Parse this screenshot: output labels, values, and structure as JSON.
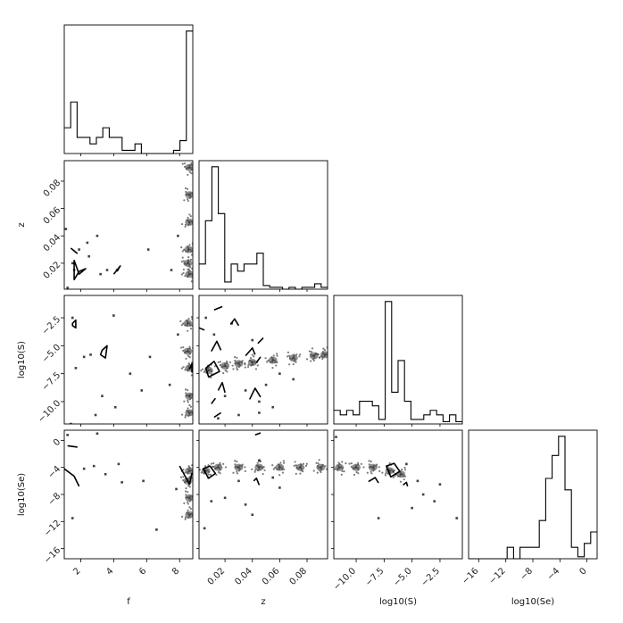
{
  "chart_data": {
    "type": "corner",
    "parameters": [
      "f",
      "z",
      "log10(S)",
      "log10(Se)"
    ],
    "ranges": [
      [
        1.0,
        8.8
      ],
      [
        0.001,
        0.095
      ],
      [
        -12.0,
        -0.5
      ],
      [
        -17.5,
        1.5
      ]
    ],
    "ticks": [
      {
        "values": [
          2,
          4,
          6,
          8
        ],
        "labels": [
          "2",
          "4",
          "6",
          "8"
        ]
      },
      {
        "values": [
          0.02,
          0.04,
          0.06,
          0.08
        ],
        "labels": [
          "0.02",
          "0.04",
          "0.06",
          "0.08"
        ]
      },
      {
        "values": [
          -10,
          -7.5,
          -5,
          -2.5
        ],
        "labels": [
          "−10.0",
          "−7.5",
          "−5.0",
          "−2.5"
        ]
      },
      {
        "values": [
          -16,
          -12,
          -8,
          -4,
          0
        ],
        "labels": [
          "−16",
          "−12",
          "−8",
          "−4",
          "0"
        ]
      }
    ],
    "yticks": [
      null,
      {
        "values": [
          0.02,
          0.04,
          0.06,
          0.08
        ],
        "labels": [
          "0.02",
          "0.04",
          "0.06",
          "0.08"
        ]
      },
      {
        "values": [
          -10,
          -7.5,
          -5,
          -2.5
        ],
        "labels": [
          "−10.0",
          "−7.5",
          "−5.0",
          "−2.5"
        ]
      },
      {
        "values": [
          -16,
          -12,
          -8,
          -4,
          0
        ],
        "labels": [
          "−16",
          "−12",
          "−8",
          "−4",
          "0"
        ]
      }
    ],
    "histograms": [
      {
        "param": "f",
        "bin_edges": [
          1.0,
          1.39,
          1.78,
          2.17,
          2.56,
          2.95,
          3.34,
          3.73,
          4.12,
          4.51,
          4.9,
          5.29,
          5.68,
          6.07,
          6.46,
          6.85,
          7.24,
          7.63,
          8.02,
          8.41,
          8.8
        ],
        "counts": [
          8,
          16,
          5,
          5,
          3,
          5,
          8,
          5,
          5,
          1,
          1,
          3,
          0,
          0,
          0,
          0,
          0,
          1,
          4,
          38
        ]
      },
      {
        "param": "z",
        "bin_edges": [
          0.001,
          0.0057,
          0.0104,
          0.0151,
          0.0198,
          0.0245,
          0.0292,
          0.0339,
          0.0386,
          0.0433,
          0.048,
          0.0527,
          0.0574,
          0.0621,
          0.0668,
          0.0715,
          0.0762,
          0.0809,
          0.0856,
          0.0903,
          0.095
        ],
        "counts": [
          7,
          19,
          34,
          21,
          2,
          7,
          5,
          7,
          7,
          10,
          1,
          0.5,
          0.5,
          0,
          0.5,
          0,
          0.5,
          0.5,
          1.5,
          0.5
        ]
      },
      {
        "param": "log10(S)",
        "bin_edges": [
          -12.0,
          -11.425,
          -10.85,
          -10.275,
          -9.7,
          -9.125,
          -8.55,
          -7.975,
          -7.4,
          -6.825,
          -6.25,
          -5.675,
          -5.1,
          -4.525,
          -3.95,
          -3.375,
          -2.8,
          -2.225,
          -1.65,
          -1.075,
          -0.5
        ],
        "counts": [
          3,
          2,
          3,
          2,
          5,
          5,
          4,
          1,
          27,
          7,
          14,
          5,
          1,
          1,
          2,
          3,
          2,
          0.5,
          2,
          0.5
        ]
      },
      {
        "param": "log10(Se)",
        "bin_edges": [
          -17.5,
          -16.55,
          -15.6,
          -14.65,
          -13.7,
          -12.75,
          -11.8,
          -10.85,
          -9.9,
          -8.95,
          -8.0,
          -7.05,
          -6.1,
          -5.15,
          -4.2,
          -3.25,
          -2.3,
          -1.35,
          -0.4,
          0.55,
          1.5
        ],
        "counts": [
          0,
          0,
          0,
          0,
          0,
          0,
          3,
          0,
          3,
          3,
          3,
          10,
          21,
          27,
          32,
          18,
          3,
          0.5,
          4,
          7
        ]
      }
    ],
    "pairs": [
      {
        "x": "f",
        "y": "z",
        "dense": [
          [
            8.6,
            0.012
          ],
          [
            8.6,
            0.09
          ],
          [
            8.6,
            0.07
          ],
          [
            8.6,
            0.05
          ],
          [
            8.55,
            0.03
          ],
          [
            8.5,
            0.02
          ]
        ],
        "sparse": [
          [
            1.6,
            0.015
          ],
          [
            1.5,
            0.02
          ],
          [
            1.1,
            0.045
          ],
          [
            1.9,
            0.03
          ],
          [
            2.5,
            0.025
          ],
          [
            3.2,
            0.012
          ],
          [
            3.6,
            0.015
          ],
          [
            4.2,
            0.015
          ],
          [
            2.4,
            0.035
          ],
          [
            3.0,
            0.04
          ],
          [
            6.1,
            0.03
          ],
          [
            7.5,
            0.015
          ],
          [
            7.9,
            0.04
          ],
          [
            1.2,
            0.002
          ]
        ],
        "contours": [
          [
            [
              1.6,
              0.022
            ],
            [
              1.9,
              0.012
            ],
            [
              2.3,
              0.016
            ],
            [
              1.9,
              0.014
            ],
            [
              1.6,
              0.008
            ]
          ],
          [
            [
              4.0,
              0.012
            ],
            [
              4.4,
              0.018
            ],
            [
              4.2,
              0.014
            ]
          ],
          [
            [
              1.4,
              0.031
            ],
            [
              1.8,
              0.027
            ]
          ]
        ]
      },
      {
        "x": "f",
        "y": "log10(S)",
        "dense": [
          [
            8.6,
            -7.0
          ],
          [
            8.5,
            -5.5
          ],
          [
            8.6,
            -9.5
          ],
          [
            8.6,
            -11.0
          ],
          [
            8.5,
            -3.0
          ]
        ],
        "sparse": [
          [
            1.5,
            -2.5
          ],
          [
            1.4,
            -12.0
          ],
          [
            1.7,
            -7.0
          ],
          [
            2.2,
            -6.0
          ],
          [
            2.6,
            -5.8
          ],
          [
            3.3,
            -9.5
          ],
          [
            4.1,
            -10.5
          ],
          [
            5.0,
            -7.5
          ],
          [
            5.7,
            -9.0
          ],
          [
            6.2,
            -6.0
          ],
          [
            7.4,
            -8.5
          ],
          [
            7.9,
            -4.0
          ],
          [
            2.9,
            -11.2
          ],
          [
            4.0,
            -2.3
          ]
        ],
        "contours": [
          [
            [
              1.5,
              -3.0
            ],
            [
              1.7,
              -2.7
            ],
            [
              1.7,
              -3.4
            ],
            [
              1.5,
              -3.2
            ]
          ],
          [
            [
              3.3,
              -5.4
            ],
            [
              3.6,
              -5.0
            ],
            [
              3.5,
              -6.1
            ],
            [
              3.2,
              -5.8
            ]
          ],
          [
            [
              8.6,
              -7.1
            ],
            [
              8.75,
              -6.6
            ],
            [
              8.75,
              -7.4
            ]
          ]
        ]
      },
      {
        "x": "f",
        "y": "log10(Se)",
        "dense": [
          [
            8.6,
            -4.5
          ],
          [
            8.5,
            -6.0
          ],
          [
            8.6,
            -8.5
          ],
          [
            8.6,
            -11.0
          ]
        ],
        "sparse": [
          [
            1.2,
            0.8
          ],
          [
            1.5,
            -11.5
          ],
          [
            2.2,
            -4.2
          ],
          [
            2.8,
            -3.8
          ],
          [
            3.5,
            -5.0
          ],
          [
            4.3,
            -3.5
          ],
          [
            5.8,
            -6.0
          ],
          [
            6.6,
            -13.2
          ],
          [
            7.8,
            -7.2
          ],
          [
            3.0,
            1.0
          ],
          [
            4.5,
            -6.2
          ]
        ],
        "contours": [
          [
            [
              1.0,
              -4.2
            ],
            [
              1.6,
              -5.3
            ],
            [
              1.9,
              -6.8
            ]
          ],
          [
            [
              1.2,
              -0.8
            ],
            [
              1.8,
              -1.0
            ]
          ],
          [
            [
              8.0,
              -3.8
            ],
            [
              8.6,
              -6.5
            ],
            [
              8.75,
              -4.8
            ]
          ]
        ]
      },
      {
        "x": "z",
        "y": "log10(S)",
        "dense": [
          [
            0.008,
            -7.2
          ],
          [
            0.02,
            -6.8
          ],
          [
            0.03,
            -6.6
          ],
          [
            0.04,
            -6.5
          ],
          [
            0.055,
            -6.3
          ],
          [
            0.07,
            -6.1
          ],
          [
            0.085,
            -5.9
          ],
          [
            0.093,
            -5.8
          ]
        ],
        "sparse": [
          [
            0.006,
            -2.5
          ],
          [
            0.012,
            -4.0
          ],
          [
            0.02,
            -9.5
          ],
          [
            0.03,
            -11.2
          ],
          [
            0.045,
            -10.0
          ],
          [
            0.05,
            -8.5
          ],
          [
            0.035,
            -9.0
          ],
          [
            0.025,
            -3.0
          ],
          [
            0.04,
            -4.5
          ],
          [
            0.06,
            -7.5
          ],
          [
            0.07,
            -8.0
          ],
          [
            0.015,
            -11.5
          ],
          [
            0.045,
            -11.0
          ],
          [
            0.055,
            -10.5
          ]
        ],
        "contours": [
          [
            [
              0.006,
              -7.0
            ],
            [
              0.012,
              -6.4
            ],
            [
              0.016,
              -7.3
            ],
            [
              0.008,
              -7.8
            ]
          ],
          [
            [
              0.01,
              -5.5
            ],
            [
              0.014,
              -4.6
            ],
            [
              0.017,
              -5.4
            ]
          ],
          [
            [
              0.038,
              -9.8
            ],
            [
              0.042,
              -8.8
            ],
            [
              0.046,
              -9.6
            ]
          ],
          [
            [
              0.012,
              -1.8
            ],
            [
              0.018,
              -1.5
            ]
          ],
          [
            [
              0.024,
              -3.1
            ],
            [
              0.027,
              -2.6
            ],
            [
              0.03,
              -3.2
            ]
          ],
          [
            [
              0.035,
              -5.9
            ],
            [
              0.04,
              -5.2
            ],
            [
              0.042,
              -5.8
            ]
          ],
          [
            [
              0.001,
              -3.4
            ],
            [
              0.005,
              -3.6
            ]
          ],
          [
            [
              0.015,
              -9.0
            ],
            [
              0.018,
              -8.3
            ],
            [
              0.02,
              -9.2
            ]
          ],
          [
            [
              0.01,
              -10.2
            ],
            [
              0.013,
              -9.7
            ]
          ],
          [
            [
              0.012,
              -11.4
            ],
            [
              0.017,
              -11.0
            ]
          ],
          [
            [
              0.043,
              -6.5
            ],
            [
              0.046,
              -6.0
            ]
          ],
          [
            [
              0.044,
              -4.8
            ],
            [
              0.048,
              -4.3
            ]
          ]
        ]
      },
      {
        "x": "z",
        "y": "log10(Se)",
        "dense": [
          [
            0.006,
            -4.5
          ],
          [
            0.015,
            -4.0
          ],
          [
            0.03,
            -4.0
          ],
          [
            0.045,
            -4.0
          ],
          [
            0.06,
            -4.0
          ],
          [
            0.075,
            -4.0
          ],
          [
            0.09,
            -4.0
          ]
        ],
        "sparse": [
          [
            0.005,
            -13.0
          ],
          [
            0.01,
            -9.0
          ],
          [
            0.02,
            -8.5
          ],
          [
            0.035,
            -9.5
          ],
          [
            0.04,
            -11.0
          ],
          [
            0.045,
            -3.0
          ],
          [
            0.03,
            -6.0
          ],
          [
            0.055,
            -5.5
          ],
          [
            0.06,
            -7.0
          ]
        ],
        "contours": [
          [
            [
              0.004,
              -4.2
            ],
            [
              0.009,
              -3.8
            ],
            [
              0.013,
              -4.9
            ],
            [
              0.008,
              -5.6
            ]
          ],
          [
            [
              0.041,
              -6.0
            ],
            [
              0.043,
              -5.6
            ],
            [
              0.045,
              -6.6
            ]
          ],
          [
            [
              0.042,
              0.8
            ],
            [
              0.046,
              1.1
            ]
          ]
        ]
      },
      {
        "x": "log10(S)",
        "y": "log10(Se)",
        "dense": [
          [
            -11.5,
            -4.0
          ],
          [
            -10.0,
            -4.0
          ],
          [
            -8.5,
            -4.0
          ],
          [
            -7.0,
            -4.5
          ],
          [
            -6.0,
            -5.0
          ]
        ],
        "sparse": [
          [
            -5.5,
            -3.5
          ],
          [
            -4.5,
            -6.0
          ],
          [
            -4.0,
            -8.0
          ],
          [
            -3.0,
            -9.0
          ],
          [
            -2.5,
            -6.5
          ],
          [
            -5.0,
            -10.0
          ],
          [
            -8.0,
            -11.5
          ],
          [
            -1.0,
            -11.5
          ],
          [
            -11.8,
            0.5
          ]
        ],
        "contours": [
          [
            [
              -7.3,
              -3.8
            ],
            [
              -6.6,
              -3.4
            ],
            [
              -6.1,
              -4.6
            ],
            [
              -6.9,
              -5.4
            ]
          ],
          [
            [
              -8.9,
              -6.1
            ],
            [
              -8.3,
              -5.5
            ],
            [
              -8.0,
              -6.3
            ]
          ],
          [
            [
              -5.8,
              -6.6
            ],
            [
              -5.5,
              -6.2
            ],
            [
              -5.4,
              -6.8
            ]
          ]
        ]
      }
    ]
  }
}
